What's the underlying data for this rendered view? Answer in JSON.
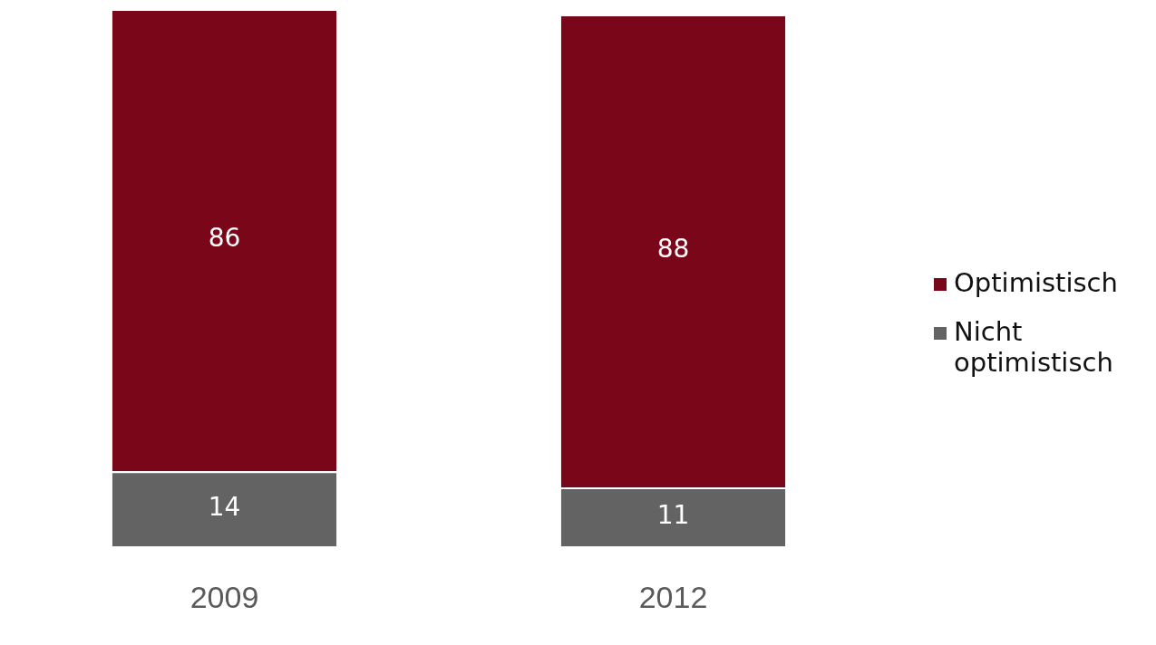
{
  "chart_data": {
    "type": "bar",
    "stacked": true,
    "categories": [
      "2009",
      "2012"
    ],
    "series": [
      {
        "name": "Nicht optimistisch",
        "color": "#636363",
        "values": [
          14,
          11
        ]
      },
      {
        "name": "Optimistisch",
        "color": "#7a0619",
        "values": [
          86,
          88
        ]
      }
    ],
    "data_labels": true,
    "legend": "right",
    "grid": false
  }
}
